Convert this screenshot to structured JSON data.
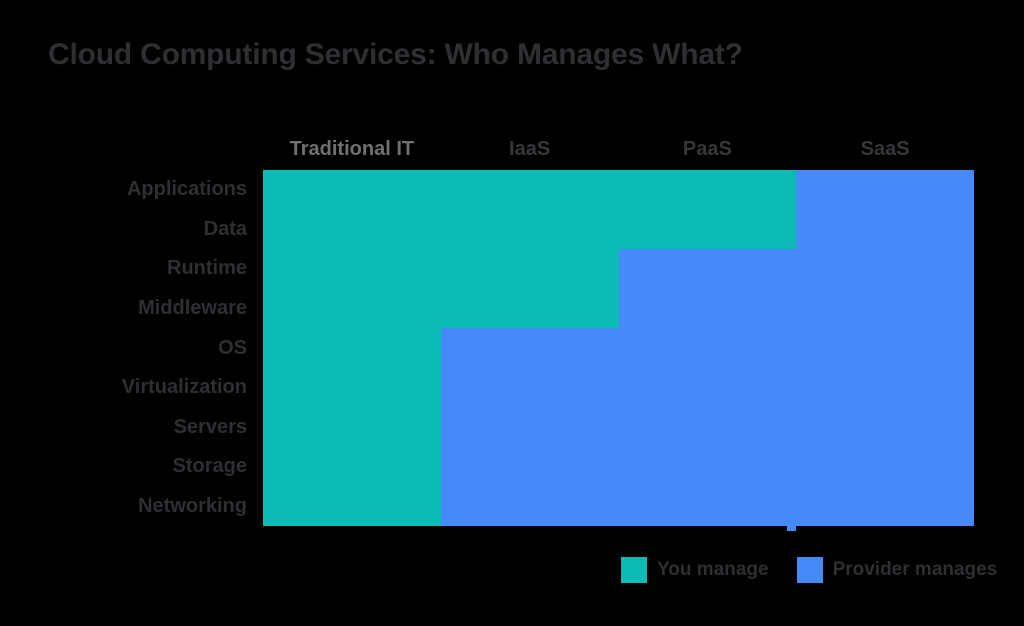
{
  "page": {
    "background": "#000000"
  },
  "title": "Cloud Computing Services: Who Manages What?",
  "colors": {
    "you_manage": "#0cbcb4",
    "provider_manages": "#4689fa",
    "title_text": "#2e2f33",
    "row_label_text": "#2d2f33",
    "column_header_text": "#36373b",
    "column_header_muted_text": "#6f7072",
    "legend_text": "#2d2f33"
  },
  "legend": {
    "items": [
      {
        "label": "You manage",
        "color_key": "you_manage"
      },
      {
        "label": "Provider manages",
        "color_key": "provider_manages"
      }
    ]
  },
  "chart_data": {
    "type": "heatmap",
    "title": "Cloud Computing Services: Who Manages What?",
    "columns": [
      "Traditional IT",
      "IaaS",
      "PaaS",
      "SaaS"
    ],
    "column_header_color_keys": [
      "column_header_muted_text",
      "column_header_text",
      "column_header_text",
      "column_header_text"
    ],
    "rows": [
      "Applications",
      "Data",
      "Runtime",
      "Middleware",
      "OS",
      "Virtualization",
      "Servers",
      "Storage",
      "Networking"
    ],
    "you_manage_rows_per_column": [
      9,
      4,
      2,
      0
    ],
    "matrix": [
      [
        "you",
        "you",
        "you",
        "provider"
      ],
      [
        "you",
        "you",
        "you",
        "provider"
      ],
      [
        "you",
        "you",
        "provider",
        "provider"
      ],
      [
        "you",
        "you",
        "provider",
        "provider"
      ],
      [
        "you",
        "provider",
        "provider",
        "provider"
      ],
      [
        "you",
        "provider",
        "provider",
        "provider"
      ],
      [
        "you",
        "provider",
        "provider",
        "provider"
      ],
      [
        "you",
        "provider",
        "provider",
        "provider"
      ],
      [
        "you",
        "provider",
        "provider",
        "provider"
      ]
    ],
    "value_color_keys": {
      "you": "you_manage",
      "provider": "provider_manages"
    },
    "legend_entries": [
      "You manage",
      "Provider manages"
    ],
    "legend_position": "bottom-right",
    "grid_lines": false
  }
}
